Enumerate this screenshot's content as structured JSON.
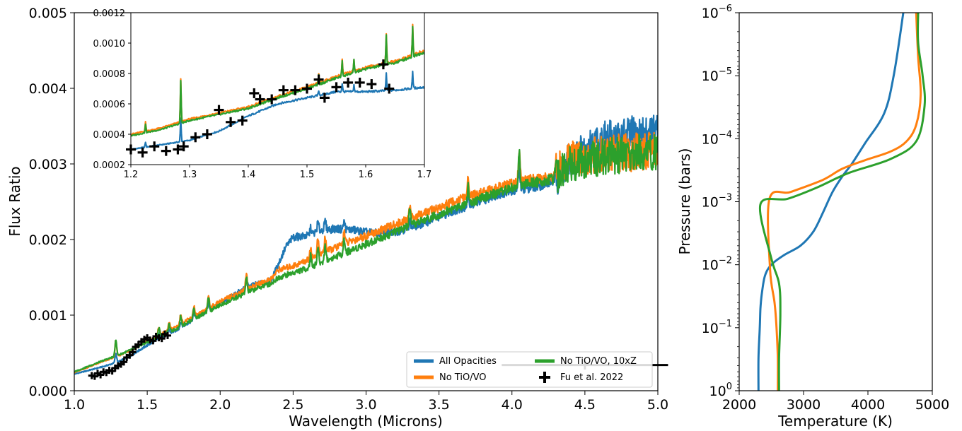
{
  "chart_data": [
    {
      "id": "spectrum",
      "type": "line",
      "title": "",
      "xlabel": "Wavelength (Microns)",
      "ylabel": "Flux Ratio",
      "xlim": [
        1.0,
        5.0
      ],
      "ylim": [
        0.0,
        0.005
      ],
      "x_ticks": [
        "1.0",
        "1.5",
        "2.0",
        "2.5",
        "3.0",
        "3.5",
        "4.0",
        "4.5",
        "5.0"
      ],
      "y_ticks": [
        "0.000",
        "0.001",
        "0.002",
        "0.003",
        "0.004",
        "0.005"
      ],
      "grid": false,
      "legend_position": "lower-right",
      "legend": [
        {
          "label": "All Opacities",
          "color": "#1f77b4",
          "marker": "line"
        },
        {
          "label": "No TiO/VO",
          "color": "#ff7f0e",
          "marker": "line"
        },
        {
          "label": "No TiO/VO, 10xZ",
          "color": "#2ca02c",
          "marker": "line"
        },
        {
          "label": "Fu et al. 2022",
          "color": "#000000",
          "marker": "plus"
        }
      ],
      "series": [
        {
          "name": "All Opacities",
          "color": "#1f77b4",
          "x": [
            1.0,
            1.2,
            1.3,
            1.4,
            1.5,
            1.6,
            1.7,
            1.8,
            1.9,
            2.0,
            2.1,
            2.2,
            2.3,
            2.35,
            2.4,
            2.45,
            2.5,
            2.6,
            2.7,
            2.8,
            2.9,
            3.0,
            3.1,
            3.2,
            3.3,
            3.4,
            3.5,
            3.6,
            3.7,
            3.8,
            3.9,
            4.0,
            4.1,
            4.2,
            4.3,
            4.35,
            4.4,
            4.5,
            4.6,
            4.7,
            4.8,
            4.9,
            5.0
          ],
          "y": [
            0.00022,
            0.00032,
            0.00038,
            0.00048,
            0.0006,
            0.00071,
            0.0008,
            0.00092,
            0.00104,
            0.00116,
            0.00128,
            0.00138,
            0.00144,
            0.00146,
            0.00168,
            0.0019,
            0.00203,
            0.00205,
            0.00213,
            0.00214,
            0.00213,
            0.0021,
            0.00208,
            0.0021,
            0.00215,
            0.00222,
            0.0023,
            0.00238,
            0.00245,
            0.00252,
            0.0026,
            0.00265,
            0.00268,
            0.00272,
            0.00278,
            0.00293,
            0.00305,
            0.00318,
            0.0033,
            0.00333,
            0.00336,
            0.00338,
            0.0034
          ]
        },
        {
          "name": "No TiO/VO",
          "color": "#ff7f0e",
          "x": [
            1.0,
            1.2,
            1.3,
            1.4,
            1.5,
            1.6,
            1.7,
            1.8,
            1.9,
            2.0,
            2.1,
            2.2,
            2.3,
            2.35,
            2.4,
            2.5,
            2.6,
            2.7,
            2.8,
            2.9,
            3.0,
            3.1,
            3.2,
            3.3,
            3.4,
            3.5,
            3.6,
            3.7,
            3.8,
            3.9,
            4.0,
            4.1,
            4.2,
            4.3,
            4.35,
            4.4,
            4.5,
            4.6,
            4.7,
            4.8,
            4.9,
            5.0
          ],
          "y": [
            0.00024,
            0.00039,
            0.00046,
            0.00055,
            0.00065,
            0.00075,
            0.00085,
            0.00096,
            0.00106,
            0.00118,
            0.00127,
            0.00136,
            0.00144,
            0.00148,
            0.0016,
            0.00165,
            0.00173,
            0.00182,
            0.0019,
            0.00198,
            0.00205,
            0.00212,
            0.0022,
            0.00227,
            0.00235,
            0.00242,
            0.0025,
            0.00256,
            0.00262,
            0.00268,
            0.00274,
            0.00278,
            0.00282,
            0.00285,
            0.003,
            0.00305,
            0.0031,
            0.00312,
            0.00314,
            0.00315,
            0.00316,
            0.00318
          ]
        },
        {
          "name": "No TiO/VO, 10xZ",
          "color": "#2ca02c",
          "x": [
            1.0,
            1.2,
            1.3,
            1.4,
            1.5,
            1.6,
            1.7,
            1.8,
            1.9,
            2.0,
            2.1,
            2.2,
            2.3,
            2.35,
            2.4,
            2.5,
            2.6,
            2.7,
            2.8,
            2.9,
            3.0,
            3.1,
            3.2,
            3.3,
            3.4,
            3.5,
            3.6,
            3.7,
            3.8,
            3.9,
            4.0,
            4.1,
            4.2,
            4.3,
            4.35,
            4.4,
            4.5,
            4.6,
            4.7,
            4.8,
            4.9,
            5.0
          ],
          "y": [
            0.00025,
            0.0004,
            0.00047,
            0.00055,
            0.00064,
            0.00073,
            0.00082,
            0.00093,
            0.00103,
            0.00113,
            0.00122,
            0.00131,
            0.00139,
            0.00142,
            0.0015,
            0.00156,
            0.00162,
            0.0017,
            0.00178,
            0.00186,
            0.00194,
            0.00202,
            0.0021,
            0.00218,
            0.00226,
            0.00233,
            0.00241,
            0.00248,
            0.00255,
            0.00262,
            0.00268,
            0.00273,
            0.00277,
            0.0028,
            0.00295,
            0.003,
            0.00305,
            0.00308,
            0.00311,
            0.00313,
            0.00315,
            0.00316
          ]
        }
      ],
      "peaks": [
        {
          "x": 1.285,
          "h": 0.00022
        },
        {
          "x": 1.58,
          "h": 0.00012
        },
        {
          "x": 1.65,
          "h": 0.0001
        },
        {
          "x": 1.73,
          "h": 0.00013
        },
        {
          "x": 1.82,
          "h": 0.00014
        },
        {
          "x": 1.92,
          "h": 0.00018
        },
        {
          "x": 2.18,
          "h": 0.0002
        },
        {
          "x": 2.62,
          "h": 0.00015
        },
        {
          "x": 2.67,
          "h": 0.00022
        },
        {
          "x": 2.72,
          "h": 0.0002
        },
        {
          "x": 2.85,
          "h": 0.00018
        },
        {
          "x": 3.3,
          "h": 0.0002
        },
        {
          "x": 3.7,
          "h": 0.00024
        },
        {
          "x": 4.05,
          "h": 0.00045
        },
        {
          "x": 4.3,
          "h": 0.00015
        }
      ],
      "observations": {
        "name": "Fu et al. 2022",
        "color": "#000000",
        "x": [
          1.12,
          1.14,
          1.16,
          1.18,
          1.2,
          1.22,
          1.24,
          1.26,
          1.28,
          1.3,
          1.32,
          1.34,
          1.36,
          1.38,
          1.4,
          1.42,
          1.44,
          1.46,
          1.48,
          1.5,
          1.52,
          1.54,
          1.56,
          1.58,
          1.6,
          1.62,
          1.64,
          4.5
        ],
        "y": [
          0.0002,
          0.00019,
          0.00023,
          0.00021,
          0.00025,
          0.00024,
          0.00027,
          0.00026,
          0.0003,
          0.00033,
          0.00035,
          0.00038,
          0.00044,
          0.00047,
          0.00051,
          0.00058,
          0.00061,
          0.00065,
          0.00068,
          0.0007,
          0.00067,
          0.00066,
          0.00072,
          0.0007,
          0.00069,
          0.00075,
          0.00073,
          0.00034
        ],
        "x_error": [
          0.01,
          0.01,
          0.01,
          0.01,
          0.01,
          0.01,
          0.01,
          0.01,
          0.01,
          0.01,
          0.01,
          0.01,
          0.01,
          0.01,
          0.01,
          0.01,
          0.01,
          0.01,
          0.01,
          0.01,
          0.01,
          0.01,
          0.01,
          0.01,
          0.01,
          0.01,
          0.01,
          0.57
        ],
        "y_error": [
          2e-05,
          2e-05,
          2e-05,
          2e-05,
          2e-05,
          2e-05,
          2e-05,
          2e-05,
          2e-05,
          2e-05,
          2e-05,
          2e-05,
          2e-05,
          2e-05,
          2e-05,
          2e-05,
          2e-05,
          2e-05,
          2e-05,
          2e-05,
          2e-05,
          2e-05,
          2e-05,
          2e-05,
          2e-05,
          2e-05,
          2e-05,
          6e-05
        ]
      }
    },
    {
      "id": "inset",
      "type": "line",
      "title": "",
      "xlabel": "",
      "ylabel": "",
      "xlim": [
        1.2,
        1.7
      ],
      "ylim": [
        0.0002,
        0.0012
      ],
      "x_ticks": [
        "1.2",
        "1.3",
        "1.4",
        "1.5",
        "1.6",
        "1.7"
      ],
      "y_ticks": [
        "0.0002",
        "0.0004",
        "0.0006",
        "0.0008",
        "0.0010",
        "0.0012"
      ],
      "grid": false,
      "series": [
        {
          "name": "All Opacities",
          "color": "#1f77b4",
          "x": [
            1.2,
            1.25,
            1.3,
            1.35,
            1.4,
            1.45,
            1.5,
            1.55,
            1.6,
            1.65,
            1.7
          ],
          "y": [
            0.0003,
            0.00033,
            0.00036,
            0.00042,
            0.00052,
            0.0006,
            0.00064,
            0.00068,
            0.00068,
            0.00069,
            0.00071
          ]
        },
        {
          "name": "No TiO/VO",
          "color": "#ff7f0e",
          "x": [
            1.2,
            1.25,
            1.3,
            1.35,
            1.4,
            1.45,
            1.5,
            1.55,
            1.6,
            1.65,
            1.7
          ],
          "y": [
            0.0004,
            0.00044,
            0.0005,
            0.00054,
            0.00058,
            0.00065,
            0.00071,
            0.00078,
            0.00084,
            0.00088,
            0.00095
          ]
        },
        {
          "name": "No TiO/VO, 10xZ",
          "color": "#2ca02c",
          "x": [
            1.2,
            1.25,
            1.3,
            1.35,
            1.4,
            1.45,
            1.5,
            1.55,
            1.6,
            1.65,
            1.7
          ],
          "y": [
            0.00039,
            0.00043,
            0.00049,
            0.00053,
            0.00057,
            0.00064,
            0.0007,
            0.00077,
            0.00083,
            0.00087,
            0.00094
          ]
        }
      ],
      "peaks": [
        {
          "x": 1.225,
          "h": 6e-05
        },
        {
          "x": 1.285,
          "h": 0.00028
        },
        {
          "x": 1.52,
          "h": 6e-05
        },
        {
          "x": 1.56,
          "h": 0.0001
        },
        {
          "x": 1.58,
          "h": 8e-05
        },
        {
          "x": 1.635,
          "h": 0.0002
        },
        {
          "x": 1.68,
          "h": 0.0002
        }
      ],
      "observations": {
        "name": "Fu et al. 2022",
        "color": "#000000",
        "x": [
          1.2,
          1.22,
          1.24,
          1.26,
          1.28,
          1.29,
          1.31,
          1.33,
          1.35,
          1.37,
          1.39,
          1.41,
          1.42,
          1.44,
          1.46,
          1.48,
          1.5,
          1.52,
          1.53,
          1.55,
          1.57,
          1.59,
          1.61,
          1.63,
          1.64
        ],
        "y": [
          0.0003,
          0.00028,
          0.00032,
          0.00029,
          0.0003,
          0.00032,
          0.00038,
          0.0004,
          0.00056,
          0.00048,
          0.00049,
          0.00067,
          0.00063,
          0.00063,
          0.00069,
          0.00069,
          0.0007,
          0.00076,
          0.00064,
          0.00071,
          0.00074,
          0.00074,
          0.00073,
          0.00086,
          0.0007
        ],
        "x_error": [
          0.006,
          0.006,
          0.006,
          0.006,
          0.006,
          0.006,
          0.006,
          0.006,
          0.006,
          0.006,
          0.006,
          0.006,
          0.006,
          0.006,
          0.006,
          0.006,
          0.006,
          0.006,
          0.006,
          0.006,
          0.006,
          0.006,
          0.006,
          0.006,
          0.006
        ],
        "y_error": [
          3e-05,
          3e-05,
          3e-05,
          3e-05,
          3e-05,
          3e-05,
          3e-05,
          3e-05,
          3e-05,
          3e-05,
          3e-05,
          3e-05,
          3e-05,
          3e-05,
          3e-05,
          3e-05,
          3e-05,
          3e-05,
          3e-05,
          3e-05,
          3e-05,
          3e-05,
          3e-05,
          3e-05,
          3e-05
        ]
      }
    },
    {
      "id": "tp_profile",
      "type": "line",
      "title": "",
      "xlabel": "Temperature (K)",
      "ylabel": "Pressure (bars)",
      "xlim": [
        2000,
        5000
      ],
      "ylim": [
        1,
        1e-06
      ],
      "y_scale": "log",
      "y_inverted": true,
      "x_ticks": [
        "2000",
        "3000",
        "4000",
        "5000"
      ],
      "y_ticks": [
        {
          "base": "10",
          "exp": "0",
          "value": 1
        },
        {
          "base": "10",
          "exp": "−1",
          "value": 0.1
        },
        {
          "base": "10",
          "exp": "−2",
          "value": 0.01
        },
        {
          "base": "10",
          "exp": "−3",
          "value": 0.001
        },
        {
          "base": "10",
          "exp": "−4",
          "value": 0.0001
        },
        {
          "base": "10",
          "exp": "−5",
          "value": 1e-05
        },
        {
          "base": "10",
          "exp": "−6",
          "value": 1e-06
        }
      ],
      "grid": false,
      "series": [
        {
          "name": "All Opacities",
          "color": "#1f77b4",
          "x": [
            2300,
            2300,
            2320,
            2330,
            2350,
            2400,
            2500,
            2700,
            2950,
            3150,
            3300,
            3450,
            3600,
            3750,
            3950,
            4250,
            4400,
            4550
          ],
          "y": [
            1.0,
            0.3,
            0.1,
            0.05,
            0.03,
            0.015,
            0.01,
            0.007,
            0.005,
            0.003,
            0.0015,
            0.0007,
            0.0004,
            0.00025,
            0.00012,
            4e-05,
            1e-05,
            1e-06
          ]
        },
        {
          "name": "No TiO/VO",
          "color": "#ff7f0e",
          "x": [
            2600,
            2600,
            2580,
            2550,
            2480,
            2470,
            2800,
            3300,
            3600,
            3950,
            4350,
            4600,
            4750,
            4820,
            4780,
            4750
          ],
          "y": [
            1.0,
            0.3,
            0.1,
            0.04,
            0.012,
            0.0009,
            0.0007,
            0.00045,
            0.0003,
            0.00022,
            0.00016,
            0.00011,
            6e-05,
            2e-05,
            5e-06,
            1e-06
          ]
        },
        {
          "name": "No TiO/VO, 10xZ",
          "color": "#2ca02c",
          "x": [
            2620,
            2620,
            2640,
            2620,
            2500,
            2330,
            2750,
            3200,
            3700,
            4350,
            4750,
            4880,
            4850,
            4780,
            4780
          ],
          "y": [
            1.0,
            0.3,
            0.06,
            0.02,
            0.008,
            0.0011,
            0.0009,
            0.0006,
            0.00035,
            0.00021,
            0.00011,
            3e-05,
            1e-05,
            3e-06,
            1e-06
          ]
        }
      ]
    }
  ]
}
